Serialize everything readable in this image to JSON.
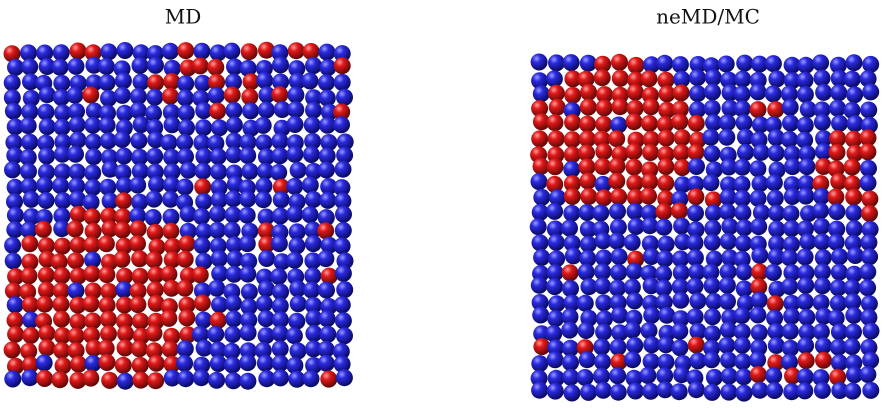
{
  "panels": [
    {
      "title": "MD"
    },
    {
      "title": "neMD/MC"
    }
  ]
}
